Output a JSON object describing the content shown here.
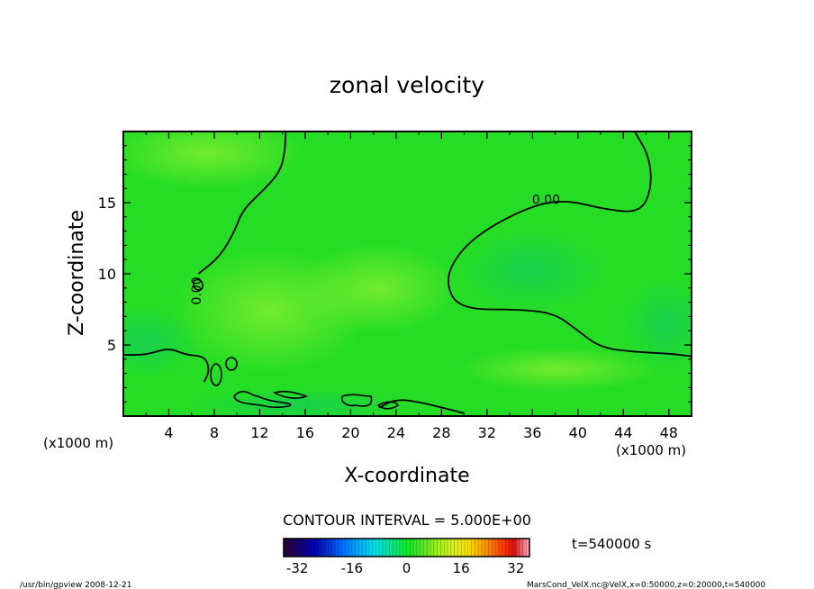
{
  "chart_data": {
    "type": "heatmap",
    "title": "zonal velocity",
    "xlabel": "X-coordinate",
    "ylabel": "Z-coordinate",
    "x_unit_label_left": "(x1000 m)",
    "x_unit_label_right": "(x1000 m)",
    "xlim": [
      0,
      50
    ],
    "ylim": [
      0,
      20
    ],
    "x_ticks": [
      4,
      8,
      12,
      16,
      20,
      24,
      28,
      32,
      36,
      40,
      44,
      48
    ],
    "y_ticks": [
      5,
      10,
      15
    ],
    "contour_interval_text": "CONTOUR INTERVAL = 5.000E+00",
    "contour_labels": [
      "0.00",
      "0.00"
    ],
    "contours": [
      {
        "level": 0,
        "points": [
          [
            14.3,
            20
          ],
          [
            14.2,
            18.5
          ],
          [
            13.8,
            17.2
          ],
          [
            12.5,
            16.0
          ],
          [
            10.5,
            14.5
          ],
          [
            9.8,
            13.0
          ],
          [
            8.5,
            11.2
          ],
          [
            6.6,
            10.0
          ]
        ]
      },
      {
        "level": 0,
        "points": [
          [
            0,
            4.3
          ],
          [
            2.0,
            4.3
          ],
          [
            4.0,
            4.8
          ],
          [
            5.5,
            4.3
          ],
          [
            7.2,
            4.2
          ],
          [
            7.6,
            3.2
          ],
          [
            7.1,
            2.4
          ]
        ]
      },
      {
        "level": 0,
        "points": [
          [
            22.5,
            0.6
          ],
          [
            24.0,
            1.2
          ],
          [
            26.0,
            1.0
          ],
          [
            28.0,
            0.6
          ],
          [
            30.0,
            0.2
          ]
        ]
      },
      {
        "level": 0,
        "points": [
          [
            45.0,
            20
          ],
          [
            46.3,
            18.2
          ],
          [
            46.5,
            16.0
          ],
          [
            45.5,
            14.3
          ],
          [
            42.5,
            14.5
          ],
          [
            39.0,
            15.2
          ],
          [
            36.0,
            14.8
          ],
          [
            32.0,
            13.2
          ],
          [
            29.5,
            11.5
          ],
          [
            28.3,
            9.5
          ],
          [
            29.5,
            7.5
          ],
          [
            35.0,
            7.5
          ],
          [
            38.0,
            7.2
          ],
          [
            40.0,
            6.0
          ],
          [
            42.0,
            4.8
          ],
          [
            45.0,
            4.5
          ],
          [
            48.0,
            4.4
          ],
          [
            50,
            4.2
          ]
        ]
      }
    ],
    "colorbar": {
      "ticks": [
        "-32",
        "-16",
        "0",
        "16",
        "32"
      ],
      "range": [
        -36,
        36
      ],
      "colors": [
        "#2a0033",
        "#1a0073",
        "#0000b0",
        "#0038e0",
        "#0078ff",
        "#00b4ff",
        "#00e0e0",
        "#00e890",
        "#10e830",
        "#50e820",
        "#a0f020",
        "#d8f020",
        "#f8e000",
        "#ffa000",
        "#ff5000",
        "#e01010",
        "#ffb0c0"
      ]
    },
    "time_label": "t=540000 s",
    "colors": {
      "field_base": "#22dd22",
      "field_light": "#66ee22",
      "field_cool": "#11cc55",
      "contour": "#000000"
    }
  },
  "footer": {
    "left": "/usr/bin/gpview   2008-12-21",
    "right": "MarsCond_VelX.nc@VelX,x=0:50000,z=0:20000,t=540000"
  }
}
